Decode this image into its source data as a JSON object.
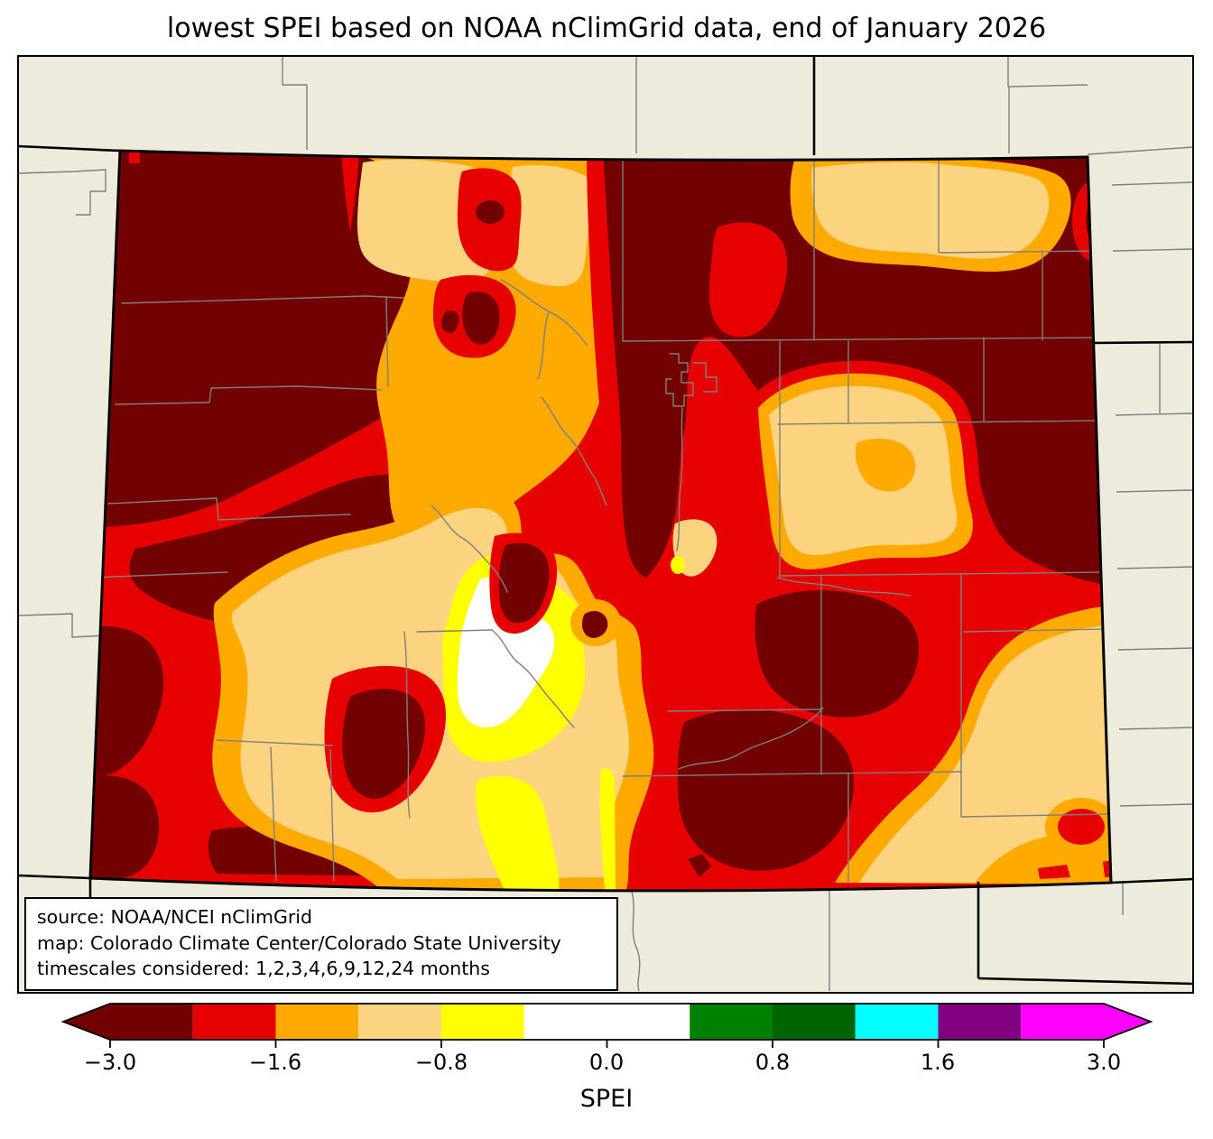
{
  "title": "lowest SPEI based on NOAA nClimGrid data, end of January 2026",
  "source_box": {
    "line1": "source: NOAA/NCEI nClimGrid",
    "line2": "map: Colorado Climate Center/Colorado State University",
    "line3": "timescales considered: 1,2,3,4,6,9,12,24 months"
  },
  "colorbar": {
    "label": "SPEI",
    "ticks": [
      "−3.0",
      "−1.6",
      "−0.8",
      "0.0",
      "0.8",
      "1.6",
      "3.0"
    ],
    "tick_values": [
      -3.0,
      -1.6,
      -0.8,
      0.0,
      0.8,
      1.6,
      3.0
    ],
    "segments": [
      {
        "color": "#730000",
        "width_units": 1
      },
      {
        "color": "#e60000",
        "width_units": 1
      },
      {
        "color": "#ffaa00",
        "width_units": 1
      },
      {
        "color": "#fcd37f",
        "width_units": 1
      },
      {
        "color": "#ffff00",
        "width_units": 1
      },
      {
        "color": "#ffffff",
        "width_units": 2
      },
      {
        "color": "#008000",
        "width_units": 1
      },
      {
        "color": "#006400",
        "width_units": 1
      },
      {
        "color": "#00ffff",
        "width_units": 1
      },
      {
        "color": "#800080",
        "width_units": 1
      },
      {
        "color": "#ff00ff",
        "width_units": 1
      }
    ],
    "arrow_left_color": "#730000",
    "arrow_right_color": "#ff00ff"
  },
  "map": {
    "region": "Colorado (state and county boundaries with surrounding states)",
    "metric": "lowest SPEI",
    "background_color": "#edebdc",
    "county_line_color": "#7f7f7f",
    "state_border_color": "#000000",
    "fill_colors": {
      "extreme_dry_darkred": "#730000",
      "severe_dry_red": "#e60000",
      "dry_orange": "#ffaa00",
      "mild_dry_tan": "#fcd37f",
      "slight_dry_yellow": "#ffff00",
      "near_normal_white": "#ffffff"
    }
  },
  "chart_data": {
    "type": "heatmap",
    "title": "lowest SPEI based on NOAA nClimGrid data, end of January 2026",
    "legend_label": "SPEI",
    "legend_tick_values": [
      -3.0,
      -1.6,
      -0.8,
      0.0,
      0.8,
      1.6,
      3.0
    ],
    "legend_colors_low_to_high": [
      "#730000",
      "#e60000",
      "#ffaa00",
      "#fcd37f",
      "#ffff00",
      "#ffffff",
      "#008000",
      "#006400",
      "#00ffff",
      "#800080",
      "#ff00ff"
    ],
    "observed_map_colors": [
      "#730000",
      "#e60000",
      "#ffaa00",
      "#fcd37f",
      "#ffff00",
      "#ffffff"
    ],
    "summary": "Map of Colorado shaded almost entirely in drought colors: dark red and red dominate the west and northeast, orange/tan bands run through the north-central mountains and southeast plains, with a small white/yellow near-normal core in the south-central mountains."
  }
}
